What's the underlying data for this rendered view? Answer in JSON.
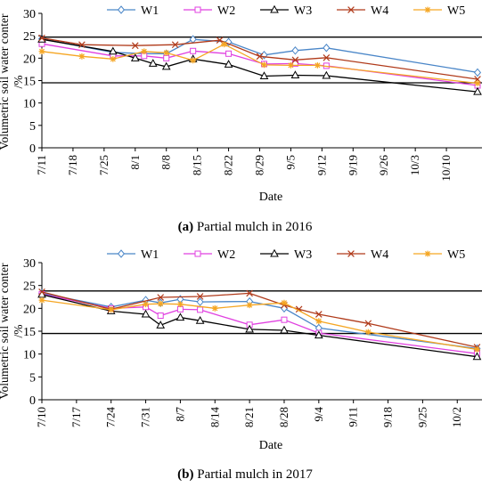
{
  "colors": {
    "W1": "#4a86c8",
    "W2": "#e040e0",
    "W3": "#000000",
    "W4": "#b03a1a",
    "W5": "#f5a623",
    "reference_line": "#000000"
  },
  "chart_data": [
    {
      "type": "line",
      "caption_bold": "(a)",
      "caption_rest": " Partial mulch in 2016",
      "xlabel": "Date",
      "ylabel": "Volumetric soil water conter /%",
      "ylim": [
        0,
        30
      ],
      "yticks": [
        0,
        5,
        10,
        15,
        20,
        25,
        30
      ],
      "xlim": [
        "2016-07-11",
        "2016-10-18"
      ],
      "xtick_dates": [
        "2016-07-11",
        "2016-07-18",
        "2016-07-25",
        "2016-08-01",
        "2016-08-08",
        "2016-08-15",
        "2016-08-22",
        "2016-08-29",
        "2016-09-05",
        "2016-09-12",
        "2016-09-19",
        "2016-09-26",
        "2016-10-03",
        "2016-10-10"
      ],
      "xtick_labels": [
        "7/11",
        "7/18",
        "7/25",
        "8/1",
        "8/8",
        "8/15",
        "8/22",
        "8/29",
        "9/5",
        "9/12",
        "9/19",
        "9/26",
        "10/3",
        "10/10"
      ],
      "reference_lines": [
        14.5,
        24.7
      ],
      "legend_position": "top",
      "series": [
        {
          "name": "W1",
          "marker": "diamond",
          "x": [
            "2016-07-11",
            "2016-07-27",
            "2016-08-03",
            "2016-08-08",
            "2016-08-14",
            "2016-08-22",
            "2016-08-30",
            "2016-09-06",
            "2016-09-13",
            "2016-10-17"
          ],
          "y": [
            24.3,
            21.3,
            21.0,
            21.0,
            24.2,
            23.6,
            20.7,
            21.7,
            22.3,
            16.8
          ]
        },
        {
          "name": "W2",
          "marker": "square",
          "x": [
            "2016-07-11",
            "2016-07-27",
            "2016-08-03",
            "2016-08-08",
            "2016-08-14",
            "2016-08-22",
            "2016-08-30",
            "2016-09-06",
            "2016-09-13",
            "2016-10-17"
          ],
          "y": [
            23.2,
            20.5,
            20.5,
            20.0,
            21.6,
            21.0,
            18.7,
            18.8,
            18.3,
            13.9
          ]
        },
        {
          "name": "W3",
          "marker": "triangle",
          "x": [
            "2016-07-11",
            "2016-07-27",
            "2016-08-01",
            "2016-08-05",
            "2016-08-08",
            "2016-08-14",
            "2016-08-22",
            "2016-08-30",
            "2016-09-06",
            "2016-09-13",
            "2016-10-17"
          ],
          "y": [
            24.2,
            21.5,
            20.0,
            18.8,
            18.1,
            19.8,
            18.6,
            16.0,
            16.2,
            16.1,
            12.5
          ]
        },
        {
          "name": "W4",
          "marker": "x",
          "x": [
            "2016-07-11",
            "2016-07-20",
            "2016-08-01",
            "2016-08-10",
            "2016-08-20",
            "2016-08-29",
            "2016-09-06",
            "2016-09-13",
            "2016-10-17"
          ],
          "y": [
            24.5,
            23.0,
            22.8,
            23.0,
            24.0,
            20.4,
            19.6,
            20.1,
            15.3
          ]
        },
        {
          "name": "W5",
          "marker": "asterisk",
          "x": [
            "2016-07-11",
            "2016-07-20",
            "2016-07-27",
            "2016-08-03",
            "2016-08-08",
            "2016-08-14",
            "2016-08-21",
            "2016-08-30",
            "2016-09-05",
            "2016-09-11",
            "2016-10-17"
          ],
          "y": [
            21.5,
            20.4,
            19.8,
            21.5,
            21.2,
            19.5,
            23.1,
            18.5,
            18.4,
            18.4,
            14.4
          ]
        }
      ]
    },
    {
      "type": "line",
      "caption_bold": "(b)",
      "caption_rest": " Partial mulch in 2017",
      "xlabel": "Date",
      "ylabel": "Volumetric soil water conter /%",
      "ylim": [
        0,
        30
      ],
      "yticks": [
        0,
        5,
        10,
        15,
        20,
        25,
        30
      ],
      "xlim": [
        "2017-07-10",
        "2017-10-07"
      ],
      "xtick_dates": [
        "2017-07-10",
        "2017-07-17",
        "2017-07-24",
        "2017-07-31",
        "2017-08-07",
        "2017-08-14",
        "2017-08-21",
        "2017-08-28",
        "2017-09-04",
        "2017-09-11",
        "2017-09-18",
        "2017-09-25",
        "2017-10-02"
      ],
      "xtick_labels": [
        "7/10",
        "7/17",
        "7/24",
        "7/31",
        "8/7",
        "8/14",
        "8/21",
        "8/28",
        "9/4",
        "9/11",
        "9/18",
        "9/25",
        "10/2"
      ],
      "reference_lines": [
        14.5,
        23.8
      ],
      "legend_position": "top",
      "series": [
        {
          "name": "W1",
          "marker": "diamond",
          "x": [
            "2017-07-10",
            "2017-07-24",
            "2017-07-31",
            "2017-08-03",
            "2017-08-07",
            "2017-08-11",
            "2017-08-21",
            "2017-08-28",
            "2017-09-04",
            "2017-10-06"
          ],
          "y": [
            23.3,
            20.3,
            21.8,
            21.2,
            22.0,
            21.4,
            21.5,
            20.0,
            15.7,
            11.2
          ]
        },
        {
          "name": "W2",
          "marker": "square",
          "x": [
            "2017-07-10",
            "2017-07-24",
            "2017-07-31",
            "2017-08-03",
            "2017-08-07",
            "2017-08-11",
            "2017-08-21",
            "2017-08-28",
            "2017-09-04",
            "2017-10-06"
          ],
          "y": [
            23.1,
            20.0,
            20.3,
            18.4,
            19.8,
            19.7,
            16.4,
            17.5,
            14.6,
            10.1
          ]
        },
        {
          "name": "W3",
          "marker": "triangle",
          "x": [
            "2017-07-10",
            "2017-07-24",
            "2017-07-31",
            "2017-08-03",
            "2017-08-07",
            "2017-08-11",
            "2017-08-21",
            "2017-08-28",
            "2017-09-04",
            "2017-10-06"
          ],
          "y": [
            23.0,
            19.4,
            18.7,
            16.3,
            18.0,
            17.3,
            15.4,
            15.2,
            14.1,
            9.4
          ]
        },
        {
          "name": "W4",
          "marker": "x",
          "x": [
            "2017-07-10",
            "2017-07-24",
            "2017-08-03",
            "2017-08-11",
            "2017-08-21",
            "2017-08-28",
            "2017-08-31",
            "2017-09-04",
            "2017-09-14",
            "2017-10-06"
          ],
          "y": [
            23.6,
            19.8,
            22.4,
            22.6,
            23.3,
            20.7,
            19.8,
            18.7,
            16.7,
            11.5
          ]
        },
        {
          "name": "W5",
          "marker": "asterisk",
          "x": [
            "2017-07-10",
            "2017-07-24",
            "2017-07-31",
            "2017-08-03",
            "2017-08-07",
            "2017-08-14",
            "2017-08-21",
            "2017-08-28",
            "2017-09-04",
            "2017-09-14",
            "2017-10-06"
          ],
          "y": [
            21.8,
            19.7,
            20.9,
            21.0,
            20.9,
            20.0,
            20.7,
            21.2,
            17.2,
            14.8,
            11.0
          ]
        }
      ]
    }
  ]
}
